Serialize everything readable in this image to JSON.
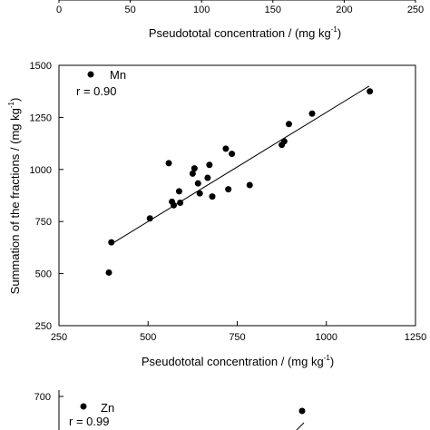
{
  "top_strip": {
    "tick_labels": [
      "0",
      "50",
      "100",
      "150",
      "200",
      "250"
    ],
    "xlabel_main": "Pseudototal concentration / (mg kg",
    "xlabel_sup": "-1",
    "xlabel_end": ")"
  },
  "chart_data": [
    {
      "type": "scatter",
      "legend_name": "Mn",
      "annotation": "r = 0.90",
      "xlabel": {
        "main": "Pseudototal concentration / (mg kg",
        "sup": "-1",
        "end": ")"
      },
      "ylabel": {
        "main": "Summation of the fractions / (mg kg",
        "sup": "-1",
        "end": ")"
      },
      "xlim": [
        250,
        1250
      ],
      "ylim": [
        250,
        1500
      ],
      "xticks": [
        250,
        500,
        750,
        1000,
        1250
      ],
      "yticks": [
        250,
        500,
        750,
        1000,
        1250,
        1500
      ],
      "grid": false,
      "legend_position": "top-left",
      "marker_color": "#000000",
      "fit_line": {
        "x": [
          395,
          1120
        ],
        "y": [
          640,
          1400
        ]
      },
      "points": [
        {
          "x": 390,
          "y": 505
        },
        {
          "x": 397,
          "y": 650
        },
        {
          "x": 505,
          "y": 765
        },
        {
          "x": 558,
          "y": 1030
        },
        {
          "x": 567,
          "y": 845
        },
        {
          "x": 572,
          "y": 828
        },
        {
          "x": 587,
          "y": 895
        },
        {
          "x": 590,
          "y": 840
        },
        {
          "x": 625,
          "y": 980
        },
        {
          "x": 630,
          "y": 1005
        },
        {
          "x": 640,
          "y": 933
        },
        {
          "x": 645,
          "y": 885
        },
        {
          "x": 667,
          "y": 960
        },
        {
          "x": 672,
          "y": 1022
        },
        {
          "x": 680,
          "y": 870
        },
        {
          "x": 718,
          "y": 1100
        },
        {
          "x": 725,
          "y": 905
        },
        {
          "x": 735,
          "y": 1075
        },
        {
          "x": 785,
          "y": 925
        },
        {
          "x": 875,
          "y": 1118
        },
        {
          "x": 882,
          "y": 1135
        },
        {
          "x": 895,
          "y": 1218
        },
        {
          "x": 960,
          "y": 1268
        },
        {
          "x": 1122,
          "y": 1375
        }
      ]
    }
  ],
  "bottom_strip": {
    "legend_name": "Zn",
    "annotation": "r = 0.99",
    "ytick_top": "700"
  }
}
